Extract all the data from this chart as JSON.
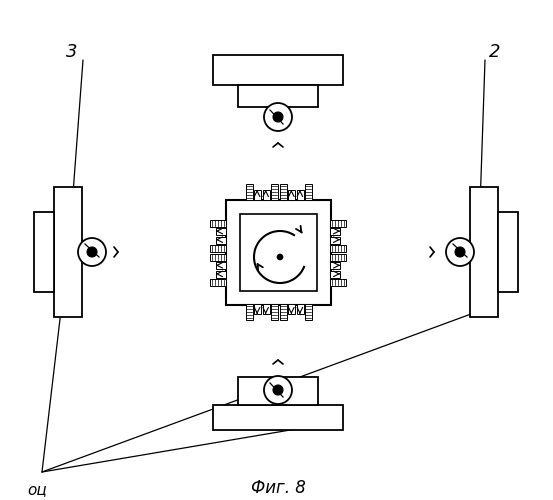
{
  "title": "Фиг. 8",
  "label_3": "3",
  "label_2": "2",
  "label_oc": "оц",
  "bg_color": "#ffffff",
  "line_color": "#000000"
}
